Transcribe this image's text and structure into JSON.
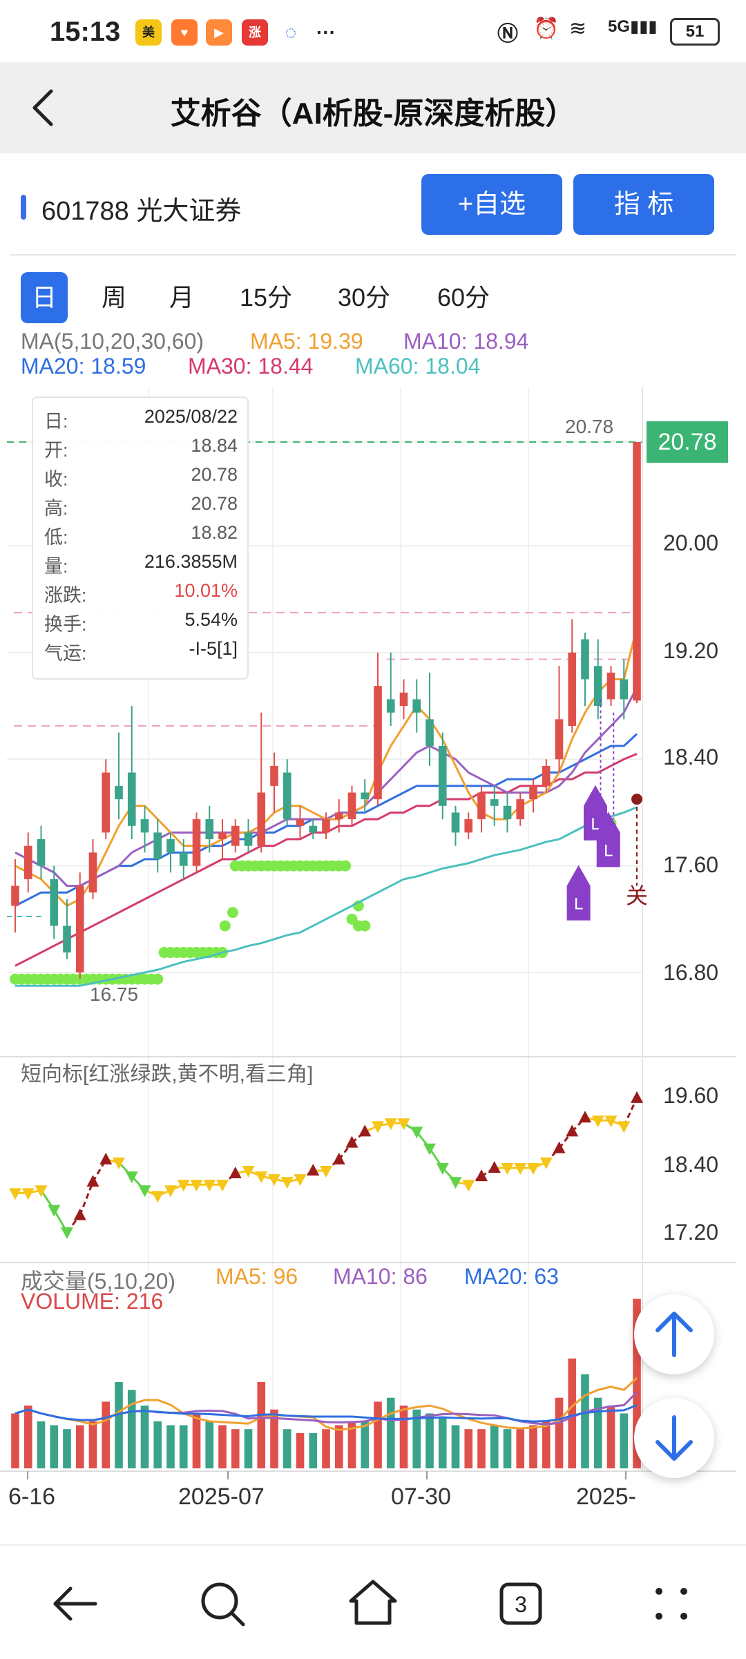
{
  "status": {
    "time": "15:13",
    "icons": [
      "meituan-app-icon",
      "taobao-app-icon",
      "play-app-icon",
      "zhang-app-icon",
      "chat-bubble-icon",
      "more-dots-icon"
    ],
    "battery": "51"
  },
  "header": {
    "title": "艾析谷（AI析股-原深度析股）"
  },
  "stock": {
    "code_name": "601788 光大证券",
    "add_button": "+自选",
    "indicator_button": "指  标"
  },
  "tabs": [
    "日",
    "周",
    "月",
    "15分",
    "30分",
    "60分"
  ],
  "ma_legend": {
    "prefix": "MA(5,10,20,30,60)",
    "ma5": "MA5: 19.39",
    "ma10": "MA10: 18.94",
    "ma20": "MA20: 18.59",
    "ma30": "MA30: 18.44",
    "ma60": "MA60: 18.04",
    "colors": {
      "ma5": "#f0a030",
      "ma10": "#9b5fc0",
      "ma20": "#2f6fe0",
      "ma30": "#d63a6a",
      "ma60": "#4cc0c0"
    }
  },
  "tooltip": {
    "rows": [
      {
        "k": "日:",
        "v": "2025/08/22",
        "color": "#222"
      },
      {
        "k": "开:",
        "v": "18.84",
        "color": "#555"
      },
      {
        "k": "收:",
        "v": "20.78",
        "color": "#555"
      },
      {
        "k": "高:",
        "v": "20.78",
        "color": "#555"
      },
      {
        "k": "低:",
        "v": "18.82",
        "color": "#555"
      },
      {
        "k": "量:",
        "v": "216.3855M",
        "color": "#222"
      },
      {
        "k": "涨跌:",
        "v": "10.01%",
        "color": "#e04040"
      },
      {
        "k": "换手:",
        "v": "5.54%",
        "color": "#222"
      },
      {
        "k": "气运:",
        "v": "-I-5[1]",
        "color": "#222"
      }
    ]
  },
  "price_axis": [
    "20.00",
    "19.20",
    "18.40",
    "17.60",
    "16.80"
  ],
  "current_price": "20.78",
  "high_marker": "20.78",
  "low_marker": "16.75",
  "short_indicator": {
    "title": "短向标[红涨绿跌,黄不明,看三角]",
    "axis": [
      "19.60",
      "18.40",
      "17.20"
    ]
  },
  "volume": {
    "title": "成交量(5,10,20)",
    "ma5": "MA5: 96",
    "ma10": "MA10: 86",
    "ma20": "MA20: 63",
    "label": "VOLUME: 216"
  },
  "x_axis": [
    "6-16",
    "2025-07",
    "07-30",
    "2025-"
  ],
  "signal_close": "关",
  "signal_l": "L",
  "chart_data": {
    "type": "candlestick",
    "candles": [
      [
        17.3,
        17.45,
        17.1,
        17.65
      ],
      [
        17.5,
        17.75,
        17.4,
        17.85
      ],
      [
        17.8,
        17.6,
        17.5,
        17.9
      ],
      [
        17.5,
        17.15,
        17.05,
        17.6
      ],
      [
        17.15,
        16.95,
        16.9,
        17.35
      ],
      [
        16.8,
        17.45,
        16.75,
        17.55
      ],
      [
        17.4,
        17.7,
        17.35,
        17.8
      ],
      [
        17.85,
        18.3,
        17.8,
        18.4
      ],
      [
        18.2,
        18.1,
        17.95,
        18.6
      ],
      [
        18.3,
        17.9,
        17.8,
        18.8
      ],
      [
        17.95,
        17.85,
        17.7,
        18.05
      ],
      [
        17.85,
        17.65,
        17.55,
        17.95
      ],
      [
        17.8,
        17.7,
        17.55,
        17.85
      ],
      [
        17.7,
        17.6,
        17.5,
        17.8
      ],
      [
        17.6,
        17.95,
        17.55,
        18.0
      ],
      [
        17.95,
        17.8,
        17.7,
        18.05
      ],
      [
        17.8,
        17.85,
        17.65,
        17.95
      ],
      [
        17.75,
        17.9,
        17.7,
        17.95
      ],
      [
        17.85,
        17.75,
        17.7,
        17.95
      ],
      [
        17.75,
        18.15,
        17.7,
        18.75
      ],
      [
        18.2,
        18.35,
        18.0,
        18.45
      ],
      [
        18.3,
        17.95,
        17.9,
        18.4
      ],
      [
        17.9,
        17.95,
        17.8,
        18.05
      ],
      [
        17.9,
        17.85,
        17.8,
        17.95
      ],
      [
        17.85,
        17.95,
        17.8,
        18.0
      ],
      [
        17.95,
        18.0,
        17.85,
        18.1
      ],
      [
        17.95,
        18.15,
        17.9,
        18.2
      ],
      [
        18.15,
        18.1,
        18.0,
        18.25
      ],
      [
        18.1,
        18.95,
        18.05,
        19.2
      ],
      [
        18.85,
        18.75,
        18.65,
        19.2
      ],
      [
        18.8,
        18.9,
        18.7,
        19.0
      ],
      [
        18.85,
        18.75,
        18.6,
        19.0
      ],
      [
        18.7,
        18.5,
        18.35,
        19.05
      ],
      [
        18.5,
        18.05,
        17.95,
        18.6
      ],
      [
        18.0,
        17.85,
        17.75,
        18.05
      ],
      [
        17.85,
        17.95,
        17.8,
        18.0
      ],
      [
        17.95,
        18.15,
        17.85,
        18.2
      ],
      [
        18.1,
        18.05,
        17.9,
        18.2
      ],
      [
        18.05,
        17.95,
        17.85,
        18.15
      ],
      [
        17.95,
        18.1,
        17.9,
        18.15
      ],
      [
        18.1,
        18.2,
        18.0,
        18.25
      ],
      [
        18.2,
        18.35,
        18.15,
        18.4
      ],
      [
        18.4,
        18.7,
        18.3,
        19.1
      ],
      [
        18.65,
        19.2,
        18.6,
        19.45
      ],
      [
        19.3,
        19.0,
        18.8,
        19.35
      ],
      [
        19.1,
        18.8,
        18.7,
        19.3
      ],
      [
        18.85,
        19.05,
        18.8,
        19.1
      ],
      [
        19.0,
        18.85,
        18.7,
        19.15
      ],
      [
        18.84,
        20.78,
        18.82,
        20.78
      ]
    ],
    "ma5": [
      17.6,
      17.55,
      17.5,
      17.4,
      17.3,
      17.35,
      17.5,
      17.7,
      17.9,
      18.05,
      18.05,
      17.95,
      17.85,
      17.75,
      17.75,
      17.75,
      17.8,
      17.85,
      17.85,
      17.9,
      18.0,
      18.05,
      18.05,
      18.0,
      17.95,
      17.95,
      18.0,
      18.05,
      18.3,
      18.5,
      18.65,
      18.8,
      18.7,
      18.55,
      18.35,
      18.15,
      18.0,
      17.95,
      17.95,
      18.05,
      18.1,
      18.15,
      18.3,
      18.55,
      18.75,
      18.9,
      19.0,
      19.0,
      19.39
    ],
    "ma10": [
      17.7,
      17.65,
      17.6,
      17.55,
      17.45,
      17.45,
      17.5,
      17.55,
      17.6,
      17.7,
      17.75,
      17.8,
      17.85,
      17.85,
      17.85,
      17.85,
      17.85,
      17.85,
      17.85,
      17.85,
      17.9,
      17.95,
      17.95,
      17.95,
      17.95,
      18.0,
      18.0,
      18.05,
      18.15,
      18.25,
      18.35,
      18.45,
      18.5,
      18.45,
      18.4,
      18.3,
      18.25,
      18.2,
      18.15,
      18.15,
      18.15,
      18.15,
      18.2,
      18.3,
      18.45,
      18.55,
      18.65,
      18.75,
      18.94
    ],
    "ma20": [
      17.3,
      17.35,
      17.4,
      17.4,
      17.4,
      17.45,
      17.5,
      17.55,
      17.6,
      17.6,
      17.65,
      17.65,
      17.7,
      17.7,
      17.7,
      17.75,
      17.75,
      17.8,
      17.8,
      17.85,
      17.85,
      17.9,
      17.9,
      17.95,
      17.95,
      17.95,
      18.0,
      18.0,
      18.05,
      18.1,
      18.15,
      18.2,
      18.2,
      18.2,
      18.2,
      18.2,
      18.2,
      18.2,
      18.25,
      18.25,
      18.25,
      18.3,
      18.3,
      18.35,
      18.4,
      18.45,
      18.5,
      18.5,
      18.59
    ],
    "ma30": [
      16.85,
      16.9,
      16.95,
      17.0,
      17.05,
      17.1,
      17.15,
      17.2,
      17.25,
      17.3,
      17.35,
      17.4,
      17.45,
      17.5,
      17.55,
      17.6,
      17.65,
      17.65,
      17.7,
      17.75,
      17.75,
      17.8,
      17.8,
      17.85,
      17.85,
      17.9,
      17.9,
      17.95,
      17.95,
      18.0,
      18.0,
      18.05,
      18.05,
      18.1,
      18.1,
      18.1,
      18.15,
      18.15,
      18.15,
      18.2,
      18.2,
      18.2,
      18.25,
      18.25,
      18.3,
      18.3,
      18.35,
      18.4,
      18.44
    ],
    "ma60": [
      16.7,
      16.7,
      16.7,
      16.7,
      16.7,
      16.7,
      16.72,
      16.74,
      16.76,
      16.78,
      16.8,
      16.82,
      16.85,
      16.88,
      16.9,
      16.92,
      16.95,
      16.97,
      17.0,
      17.02,
      17.05,
      17.08,
      17.1,
      17.15,
      17.2,
      17.25,
      17.3,
      17.35,
      17.4,
      17.45,
      17.5,
      17.52,
      17.55,
      17.58,
      17.6,
      17.62,
      17.65,
      17.68,
      17.7,
      17.72,
      17.75,
      17.78,
      17.8,
      17.85,
      17.9,
      17.95,
      17.97,
      18.0,
      18.04
    ],
    "volume": [
      70,
      80,
      60,
      55,
      50,
      55,
      60,
      85,
      110,
      100,
      80,
      60,
      55,
      55,
      70,
      60,
      55,
      50,
      50,
      110,
      75,
      50,
      45,
      45,
      50,
      55,
      60,
      60,
      85,
      90,
      80,
      75,
      70,
      65,
      55,
      50,
      50,
      55,
      50,
      50,
      55,
      60,
      90,
      140,
      120,
      90,
      80,
      70,
      216
    ],
    "volume_up": [
      true,
      true,
      false,
      false,
      false,
      true,
      true,
      true,
      false,
      false,
      false,
      false,
      false,
      false,
      true,
      false,
      true,
      true,
      false,
      true,
      true,
      false,
      true,
      false,
      true,
      true,
      true,
      false,
      true,
      false,
      true,
      false,
      false,
      false,
      false,
      true,
      true,
      false,
      false,
      true,
      true,
      true,
      true,
      true,
      false,
      false,
      true,
      false,
      true
    ],
    "short_indicator": [
      18.0,
      18.0,
      18.05,
      17.7,
      17.3,
      17.6,
      18.2,
      18.6,
      18.55,
      18.3,
      18.05,
      17.95,
      18.05,
      18.15,
      18.15,
      18.15,
      18.15,
      18.35,
      18.4,
      18.3,
      18.25,
      18.2,
      18.25,
      18.4,
      18.4,
      18.6,
      18.9,
      19.1,
      19.2,
      19.25,
      19.25,
      19.1,
      18.8,
      18.45,
      18.2,
      18.15,
      18.3,
      18.45,
      18.45,
      18.45,
      18.45,
      18.55,
      18.8,
      19.1,
      19.35,
      19.3,
      19.3,
      19.2,
      19.7
    ]
  }
}
